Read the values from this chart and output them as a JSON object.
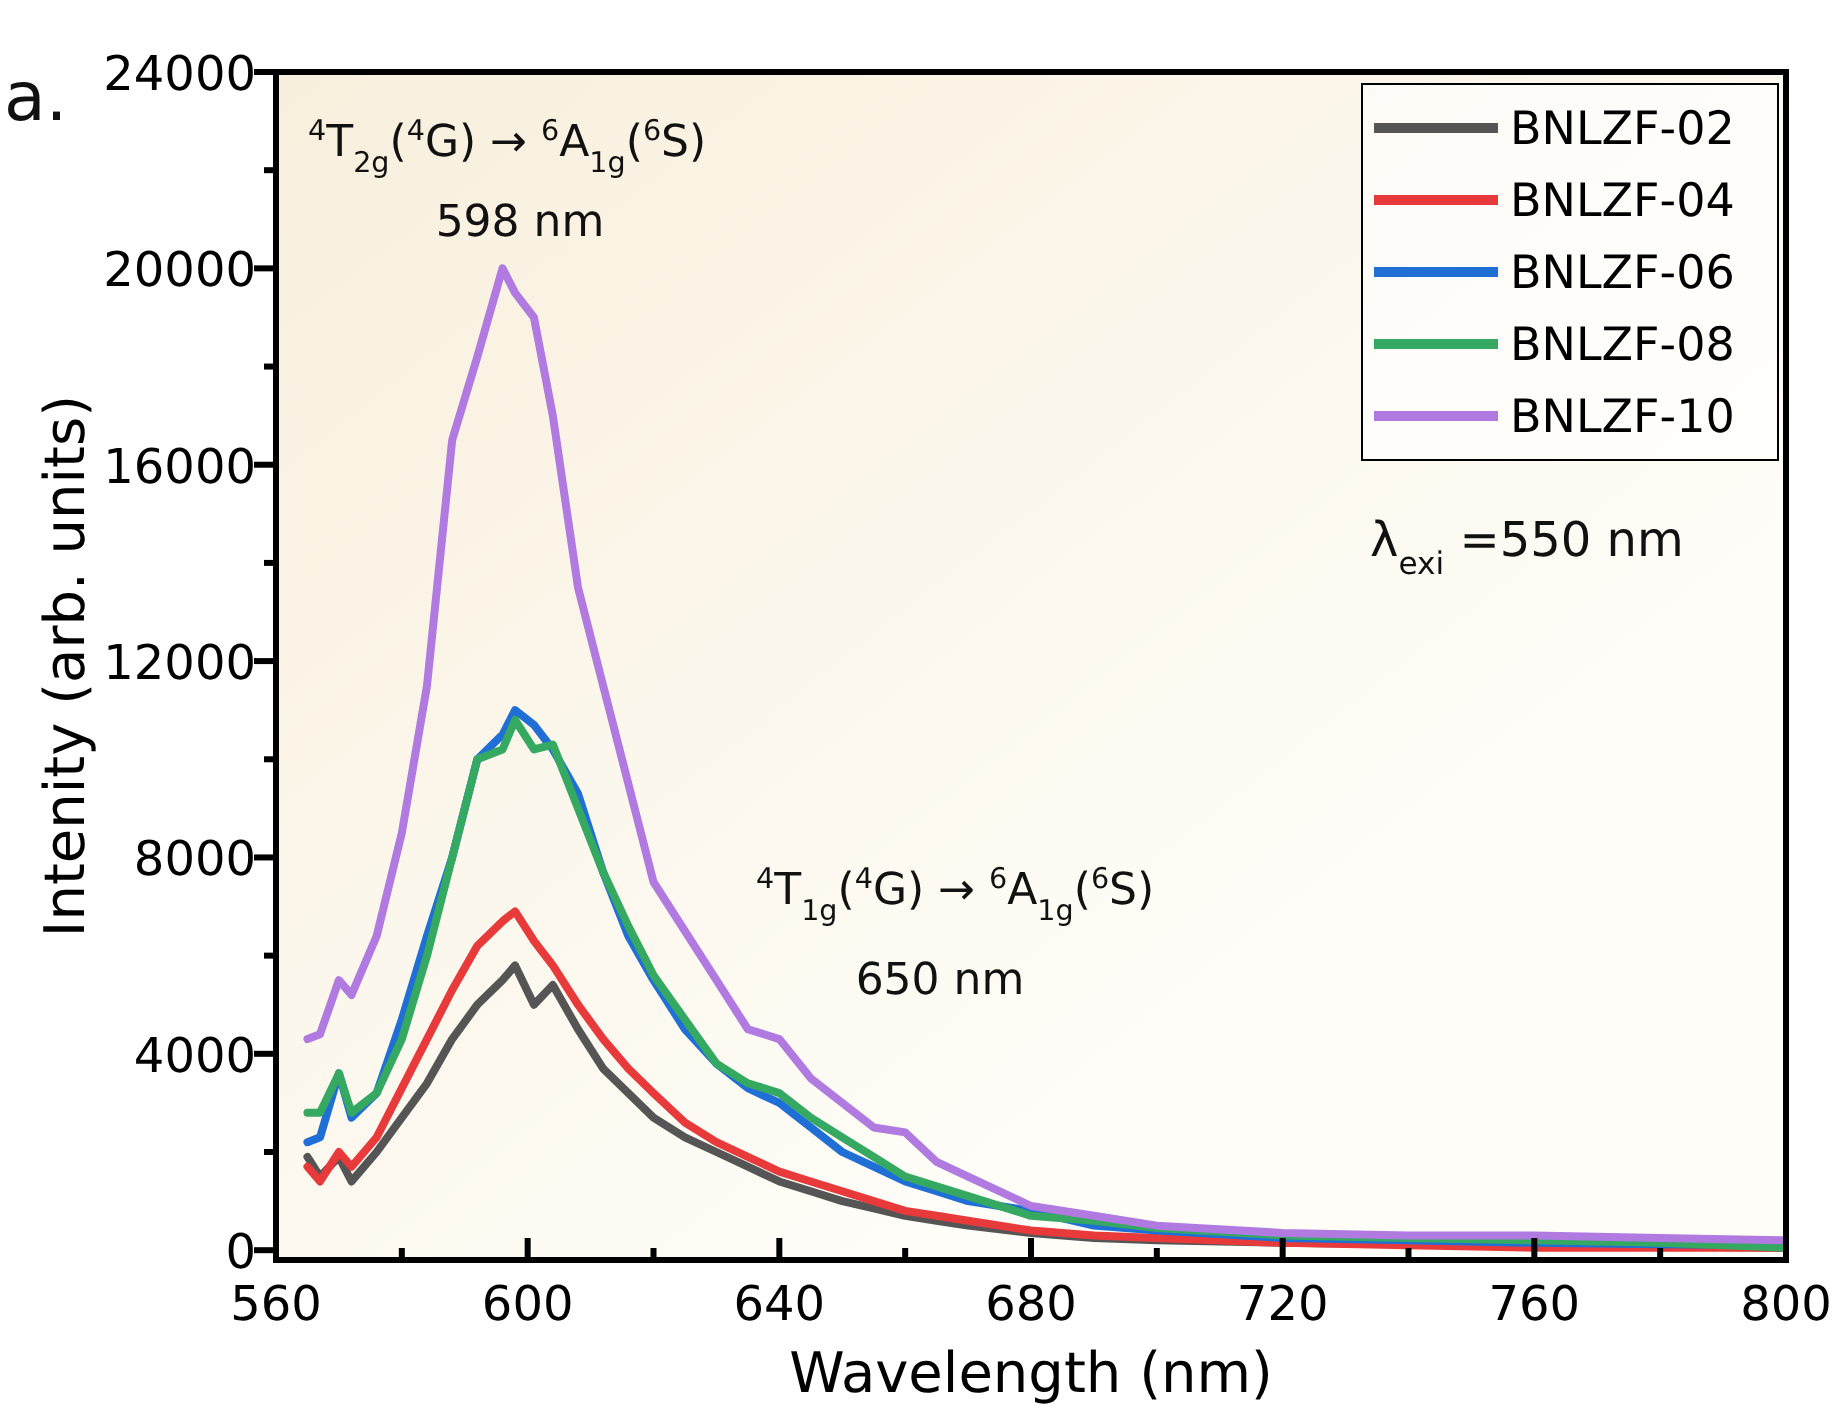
{
  "chart_data": {
    "type": "line",
    "xlabel": "Wavelength (nm)",
    "ylabel": "Intenity (arb. units)",
    "annotations": [
      "a.",
      "$^{4}$T$_{2g}$($^{4}$G) → $^{6}$A$_{1g}$($^{6}$S)",
      "598 nm",
      "$^{4}$T$_{1g}$($^{4}$G) → $^{6}$A$_{1g}$($^{6}$S)",
      "650 nm",
      "λ$_{exi}$ =550 nm"
    ],
    "xlim": [
      560,
      800
    ],
    "ylim": [
      -200,
      24000
    ],
    "xticks": [
      560,
      {
        "value": 580,
        "label": null
      },
      600,
      {
        "value": 620,
        "label": null
      },
      640,
      {
        "value": 660,
        "label": null
      },
      680,
      {
        "value": 700,
        "label": null
      },
      720,
      {
        "value": 740,
        "label": null
      },
      760,
      {
        "value": 780,
        "label": null
      },
      800
    ],
    "yticks": [
      0,
      {
        "value": 2000,
        "label": null
      },
      4000,
      {
        "value": 6000,
        "label": null
      },
      8000,
      {
        "value": 10000,
        "label": null
      },
      12000,
      {
        "value": 14000,
        "label": null
      },
      16000,
      {
        "value": 18000,
        "label": null
      },
      20000,
      {
        "value": 22000,
        "label": null
      },
      24000
    ],
    "legend": "top right",
    "line_style": "solid",
    "x": [
      565,
      567,
      570,
      572,
      576,
      580,
      584,
      588,
      592,
      596,
      598,
      601,
      604,
      608,
      612,
      616,
      620,
      625,
      630,
      635,
      640,
      645,
      650,
      655,
      660,
      665,
      670,
      680,
      690,
      700,
      720,
      740,
      760,
      780,
      800
    ],
    "series": [
      {
        "name": "BNLZF-02",
        "color": "#555555",
        "values": [
          1900,
          1500,
          1900,
          1400,
          2000,
          2700,
          3400,
          4300,
          5000,
          5500,
          5800,
          5000,
          5400,
          4500,
          3700,
          3200,
          2700,
          2300,
          2000,
          1700,
          1400,
          1200,
          1000,
          850,
          700,
          600,
          500,
          350,
          250,
          200,
          150,
          120,
          100,
          80,
          50
        ]
      },
      {
        "name": "BNLZF-04",
        "color": "#e83a3a",
        "values": [
          1700,
          1400,
          2000,
          1700,
          2300,
          3300,
          4300,
          5300,
          6200,
          6700,
          6900,
          6300,
          5800,
          5000,
          4300,
          3700,
          3200,
          2600,
          2200,
          1900,
          1600,
          1400,
          1200,
          1000,
          800,
          700,
          600,
          400,
          300,
          250,
          150,
          100,
          50,
          50,
          50
        ]
      },
      {
        "name": "BNLZF-06",
        "color": "#1f6fd6",
        "values": [
          2200,
          2300,
          3600,
          2700,
          3200,
          4700,
          6400,
          8000,
          10000,
          10500,
          11000,
          10700,
          10200,
          9300,
          7700,
          6400,
          5500,
          4500,
          3800,
          3300,
          3000,
          2500,
          2000,
          1700,
          1400,
          1200,
          1000,
          800,
          500,
          400,
          250,
          200,
          150,
          120,
          100
        ]
      },
      {
        "name": "BNLZF-08",
        "color": "#35a862",
        "values": [
          2800,
          2800,
          3600,
          2800,
          3200,
          4300,
          6000,
          8000,
          10000,
          10200,
          10800,
          10200,
          10300,
          9000,
          7700,
          6600,
          5600,
          4700,
          3800,
          3400,
          3200,
          2700,
          2300,
          1900,
          1500,
          1300,
          1100,
          700,
          600,
          450,
          300,
          250,
          200,
          150,
          50
        ]
      },
      {
        "name": "BNLZF-10",
        "color": "#b07ae0",
        "values": [
          4300,
          4400,
          5500,
          5200,
          6400,
          8500,
          11500,
          16500,
          18200,
          20000,
          19500,
          19000,
          17000,
          13500,
          11500,
          9500,
          7500,
          6500,
          5500,
          4500,
          4300,
          3500,
          3000,
          2500,
          2400,
          1800,
          1500,
          900,
          700,
          500,
          350,
          300,
          300,
          250,
          200
        ]
      }
    ]
  }
}
